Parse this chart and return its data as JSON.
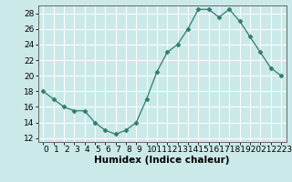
{
  "x": [
    0,
    1,
    2,
    3,
    4,
    5,
    6,
    7,
    8,
    9,
    10,
    11,
    12,
    13,
    14,
    15,
    16,
    17,
    18,
    19,
    20,
    21,
    22,
    23
  ],
  "y": [
    18,
    17,
    16,
    15.5,
    15.5,
    14,
    13,
    12.5,
    13,
    14,
    17,
    20.5,
    23,
    24,
    26,
    28.5,
    28.5,
    27.5,
    28.5,
    27,
    25,
    23,
    21,
    20
  ],
  "line_color": "#2e7d6e",
  "marker": "D",
  "marker_size": 2.5,
  "bg_color": "#cce9e9",
  "grid_color": "#ffffff",
  "xlabel": "Humidex (Indice chaleur)",
  "xlim": [
    -0.5,
    23.5
  ],
  "ylim": [
    11.5,
    29
  ],
  "yticks": [
    12,
    14,
    16,
    18,
    20,
    22,
    24,
    26,
    28
  ],
  "xlabel_fontsize": 7.5,
  "tick_fontsize": 6.5,
  "figwidth": 3.2,
  "figheight": 2.0,
  "dpi": 100
}
